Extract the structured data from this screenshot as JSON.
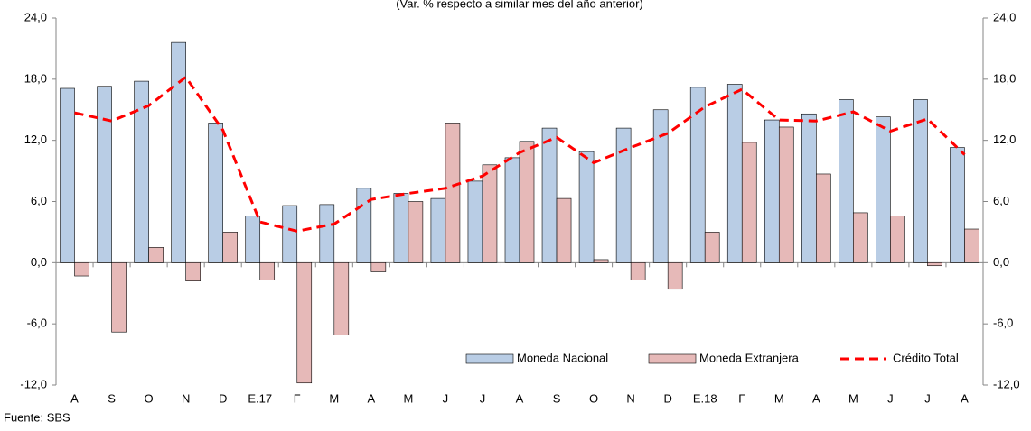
{
  "chart_data": {
    "type": "bar",
    "subtitle": "(Var. % respecto a similar mes del año anterior)",
    "source": "Fuente: SBS",
    "categories": [
      "A",
      "S",
      "O",
      "N",
      "D",
      "E.17",
      "F",
      "M",
      "A",
      "M",
      "J",
      "J",
      "A",
      "S",
      "O",
      "N",
      "D",
      "E.18",
      "F",
      "M",
      "A",
      "M",
      "J",
      "J",
      "A"
    ],
    "series": [
      {
        "name": "Moneda Nacional",
        "color": "#b9cde5",
        "values": [
          17.1,
          17.3,
          17.8,
          21.6,
          13.7,
          4.6,
          5.6,
          5.7,
          7.3,
          6.8,
          6.3,
          8.0,
          10.3,
          13.2,
          10.9,
          13.2,
          15.0,
          17.2,
          17.5,
          14.0,
          14.6,
          16.0,
          14.3,
          16.0,
          11.3
        ]
      },
      {
        "name": "Moneda Extranjera",
        "color": "#e6b9b8",
        "values": [
          -1.3,
          -6.8,
          1.5,
          -1.8,
          3.0,
          -1.7,
          -11.8,
          -7.1,
          -0.9,
          6.0,
          13.7,
          9.6,
          11.9,
          6.3,
          0.3,
          -1.7,
          -2.6,
          3.0,
          11.8,
          13.3,
          8.7,
          4.9,
          4.6,
          -0.3,
          3.3
        ]
      },
      {
        "name": "Crédito Total",
        "type": "line",
        "color": "#ff0000",
        "values": [
          14.7,
          13.9,
          15.4,
          18.2,
          13.0,
          4.0,
          3.1,
          3.8,
          6.2,
          6.8,
          7.3,
          8.5,
          10.8,
          12.3,
          9.8,
          11.3,
          12.7,
          15.3,
          17.0,
          14.0,
          13.9,
          14.8,
          12.9,
          14.1,
          10.6
        ]
      }
    ],
    "ylim": [
      -12,
      24
    ],
    "yticks": [
      {
        "value": -12,
        "label": "-12,0"
      },
      {
        "value": -6,
        "label": "-6,0"
      },
      {
        "value": 0,
        "label": "0,0"
      },
      {
        "value": 6,
        "label": "6,0"
      },
      {
        "value": 12,
        "label": "12,0"
      },
      {
        "value": 18,
        "label": "18,0"
      },
      {
        "value": 24,
        "label": "24,0"
      }
    ]
  }
}
